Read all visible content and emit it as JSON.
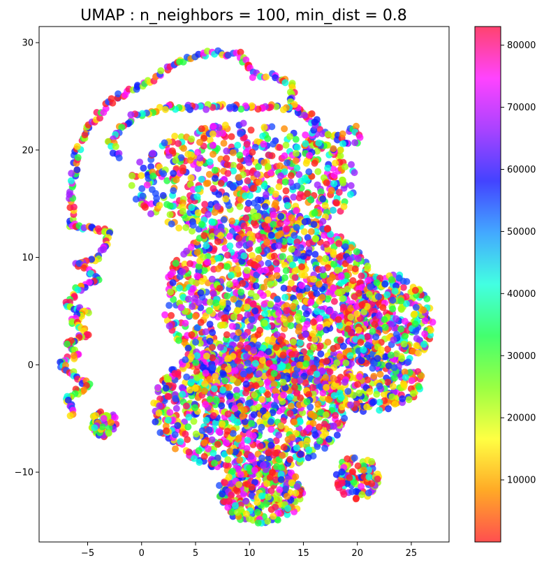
{
  "chart_data": {
    "type": "scatter",
    "title": "UMAP : n_neighbors = 100, min_dist = 0.8",
    "xlabel": "",
    "ylabel": "",
    "xlim": [
      -9.5,
      28.5
    ],
    "ylim": [
      -16.5,
      31.5
    ],
    "x_ticks": [
      -5,
      0,
      5,
      10,
      15,
      20,
      25
    ],
    "y_ticks": [
      -10,
      0,
      10,
      20,
      30
    ],
    "grid": false,
    "legend": "none",
    "colormap": "hsv",
    "colorbar": {
      "range": [
        0,
        83000
      ],
      "ticks": [
        10000,
        20000,
        30000,
        40000,
        50000,
        60000,
        70000,
        80000
      ],
      "stops": [
        "#ff3030",
        "#ff9a00",
        "#ffff22",
        "#88ff22",
        "#22ff55",
        "#22ffdd",
        "#2299ff",
        "#2222ff",
        "#9922ff",
        "#ff22ff",
        "#ff2255"
      ]
    },
    "point_colors": [
      "#ff2020",
      "#ff8c00",
      "#ffe000",
      "#a0ff10",
      "#20ff40",
      "#00ffe0",
      "#2050ff",
      "#1020ff",
      "#a020ff",
      "#ff10ff",
      "#ff1060"
    ],
    "structures": {
      "top_loop_path": [
        [
          -6.5,
          13
        ],
        [
          -6.5,
          16
        ],
        [
          -6,
          20
        ],
        [
          -5,
          22
        ],
        [
          -3,
          24.5
        ],
        [
          0,
          26
        ],
        [
          3,
          28
        ],
        [
          6,
          29
        ],
        [
          9,
          29
        ],
        [
          10.5,
          27
        ],
        [
          12,
          27
        ],
        [
          14,
          26
        ],
        [
          14,
          24
        ],
        [
          16,
          22.5
        ],
        [
          18,
          21
        ],
        [
          20,
          22
        ],
        [
          20,
          21
        ],
        [
          18,
          20
        ],
        [
          16,
          21
        ],
        [
          16,
          23
        ],
        [
          14,
          24
        ],
        [
          10,
          24
        ],
        [
          6,
          24
        ],
        [
          2,
          24
        ],
        [
          -1,
          23
        ],
        [
          -3,
          21
        ],
        [
          -2,
          19
        ]
      ],
      "left_wiggle_path": [
        [
          -6.5,
          13
        ],
        [
          -3,
          12.5
        ],
        [
          -3.5,
          11
        ],
        [
          -4,
          10
        ],
        [
          -6,
          9.5
        ],
        [
          -4,
          8
        ],
        [
          -6,
          7
        ],
        [
          -7,
          5.5
        ],
        [
          -5,
          5
        ],
        [
          -6.5,
          4
        ],
        [
          -5,
          3
        ],
        [
          -7,
          2
        ],
        [
          -6,
          1
        ],
        [
          -7.5,
          0
        ],
        [
          -6,
          -1
        ],
        [
          -5,
          -2
        ],
        [
          -7,
          -3
        ],
        [
          -6.5,
          -4
        ],
        [
          -6.5,
          -5
        ]
      ],
      "blobs": [
        {
          "cx": 9.5,
          "cy": 17,
          "rx": 10.5,
          "ry": 5.5,
          "density": 700
        },
        {
          "cx": 12,
          "cy": 6,
          "rx": 10,
          "ry": 8,
          "density": 1300
        },
        {
          "cx": 10,
          "cy": -4,
          "rx": 9,
          "ry": 6,
          "density": 1100
        },
        {
          "cx": 11,
          "cy": -12,
          "rx": 4,
          "ry": 2.8,
          "density": 300
        },
        {
          "cx": 23,
          "cy": 4,
          "rx": 4,
          "ry": 4.5,
          "density": 350
        },
        {
          "cx": 21,
          "cy": -1.5,
          "rx": 5,
          "ry": 3,
          "density": 250
        },
        {
          "cx": 20,
          "cy": -10.5,
          "rx": 2,
          "ry": 2,
          "density": 100
        },
        {
          "cx": -3.5,
          "cy": -5.5,
          "rx": 1.2,
          "ry": 1.2,
          "density": 60
        }
      ]
    }
  }
}
